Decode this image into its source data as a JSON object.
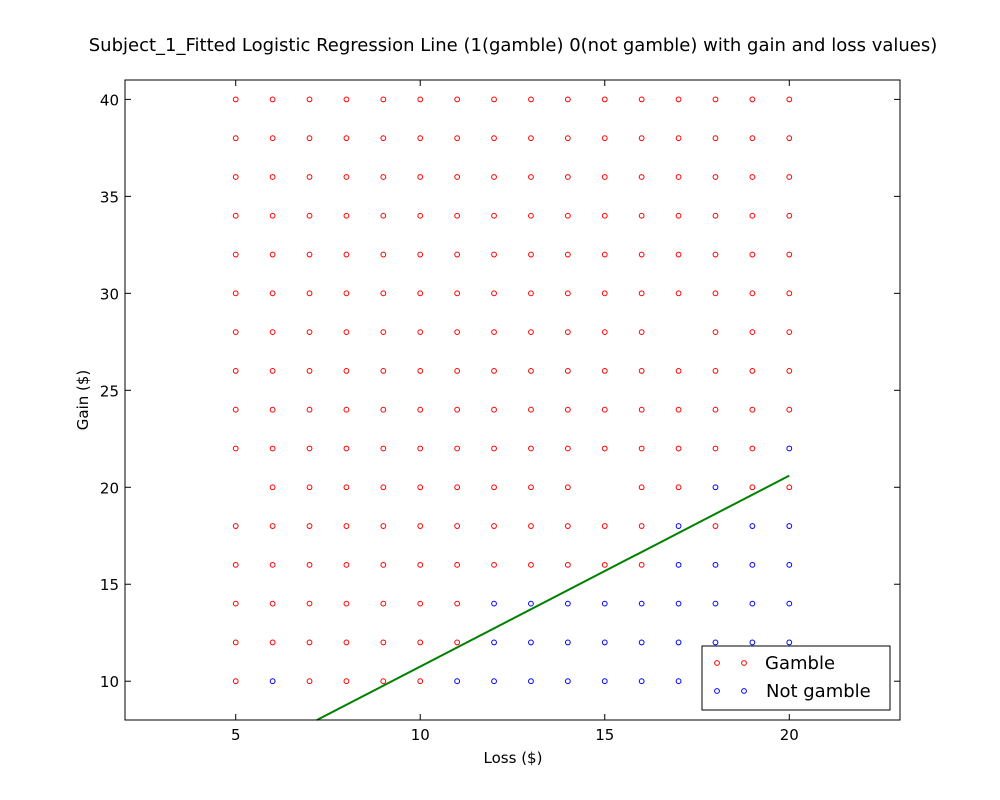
{
  "chart_data": {
    "type": "scatter",
    "title": "Subject_1_Fitted Logistic Regression Line (1(gamble) 0(not gamble) with gain and loss values)",
    "xlabel": "Loss ($)",
    "ylabel": "Gain ($)",
    "xlim": [
      2,
      23
    ],
    "ylim": [
      8,
      41
    ],
    "xticks": [
      5,
      10,
      15,
      20
    ],
    "yticks": [
      10,
      15,
      20,
      25,
      30,
      35,
      40
    ],
    "xtick_labels": [
      "5",
      "10",
      "15",
      "20"
    ],
    "ytick_labels": [
      "10",
      "15",
      "20",
      "25",
      "30",
      "35",
      "40"
    ],
    "grid": false,
    "legend_position": "lower-right",
    "series": [
      {
        "name": "Gamble",
        "color": "#ff0000",
        "marker": "open-circle",
        "points": [
          [
            5,
            10
          ],
          [
            7,
            10
          ],
          [
            8,
            10
          ],
          [
            9,
            10
          ],
          [
            10,
            10
          ],
          [
            5,
            12
          ],
          [
            6,
            12
          ],
          [
            7,
            12
          ],
          [
            8,
            12
          ],
          [
            9,
            12
          ],
          [
            10,
            12
          ],
          [
            11,
            12
          ],
          [
            5,
            14
          ],
          [
            6,
            14
          ],
          [
            7,
            14
          ],
          [
            8,
            14
          ],
          [
            9,
            14
          ],
          [
            10,
            14
          ],
          [
            11,
            14
          ],
          [
            5,
            16
          ],
          [
            6,
            16
          ],
          [
            7,
            16
          ],
          [
            8,
            16
          ],
          [
            9,
            16
          ],
          [
            10,
            16
          ],
          [
            11,
            16
          ],
          [
            12,
            16
          ],
          [
            13,
            16
          ],
          [
            14,
            16
          ],
          [
            15,
            16
          ],
          [
            16,
            16
          ],
          [
            5,
            18
          ],
          [
            6,
            18
          ],
          [
            7,
            18
          ],
          [
            8,
            18
          ],
          [
            9,
            18
          ],
          [
            10,
            18
          ],
          [
            11,
            18
          ],
          [
            12,
            18
          ],
          [
            13,
            18
          ],
          [
            14,
            18
          ],
          [
            15,
            18
          ],
          [
            16,
            18
          ],
          [
            18,
            18
          ],
          [
            6,
            20
          ],
          [
            7,
            20
          ],
          [
            8,
            20
          ],
          [
            9,
            20
          ],
          [
            10,
            20
          ],
          [
            11,
            20
          ],
          [
            12,
            20
          ],
          [
            13,
            20
          ],
          [
            14,
            20
          ],
          [
            16,
            20
          ],
          [
            17,
            20
          ],
          [
            19,
            20
          ],
          [
            20,
            20
          ],
          [
            5,
            22
          ],
          [
            6,
            22
          ],
          [
            7,
            22
          ],
          [
            8,
            22
          ],
          [
            9,
            22
          ],
          [
            10,
            22
          ],
          [
            11,
            22
          ],
          [
            12,
            22
          ],
          [
            13,
            22
          ],
          [
            14,
            22
          ],
          [
            15,
            22
          ],
          [
            16,
            22
          ],
          [
            17,
            22
          ],
          [
            18,
            22
          ],
          [
            19,
            22
          ],
          [
            5,
            24
          ],
          [
            6,
            24
          ],
          [
            7,
            24
          ],
          [
            8,
            24
          ],
          [
            9,
            24
          ],
          [
            10,
            24
          ],
          [
            11,
            24
          ],
          [
            12,
            24
          ],
          [
            13,
            24
          ],
          [
            14,
            24
          ],
          [
            15,
            24
          ],
          [
            16,
            24
          ],
          [
            17,
            24
          ],
          [
            18,
            24
          ],
          [
            19,
            24
          ],
          [
            20,
            24
          ],
          [
            5,
            26
          ],
          [
            6,
            26
          ],
          [
            7,
            26
          ],
          [
            8,
            26
          ],
          [
            9,
            26
          ],
          [
            10,
            26
          ],
          [
            11,
            26
          ],
          [
            12,
            26
          ],
          [
            13,
            26
          ],
          [
            14,
            26
          ],
          [
            15,
            26
          ],
          [
            16,
            26
          ],
          [
            17,
            26
          ],
          [
            18,
            26
          ],
          [
            19,
            26
          ],
          [
            20,
            26
          ],
          [
            5,
            28
          ],
          [
            6,
            28
          ],
          [
            7,
            28
          ],
          [
            8,
            28
          ],
          [
            9,
            28
          ],
          [
            10,
            28
          ],
          [
            11,
            28
          ],
          [
            12,
            28
          ],
          [
            13,
            28
          ],
          [
            14,
            28
          ],
          [
            15,
            28
          ],
          [
            16,
            28
          ],
          [
            18,
            28
          ],
          [
            19,
            28
          ],
          [
            20,
            28
          ],
          [
            5,
            30
          ],
          [
            6,
            30
          ],
          [
            7,
            30
          ],
          [
            8,
            30
          ],
          [
            9,
            30
          ],
          [
            10,
            30
          ],
          [
            11,
            30
          ],
          [
            12,
            30
          ],
          [
            13,
            30
          ],
          [
            14,
            30
          ],
          [
            15,
            30
          ],
          [
            16,
            30
          ],
          [
            17,
            30
          ],
          [
            18,
            30
          ],
          [
            19,
            30
          ],
          [
            20,
            30
          ],
          [
            5,
            32
          ],
          [
            6,
            32
          ],
          [
            7,
            32
          ],
          [
            8,
            32
          ],
          [
            9,
            32
          ],
          [
            10,
            32
          ],
          [
            11,
            32
          ],
          [
            12,
            32
          ],
          [
            13,
            32
          ],
          [
            14,
            32
          ],
          [
            15,
            32
          ],
          [
            16,
            32
          ],
          [
            17,
            32
          ],
          [
            18,
            32
          ],
          [
            19,
            32
          ],
          [
            20,
            32
          ],
          [
            5,
            34
          ],
          [
            6,
            34
          ],
          [
            7,
            34
          ],
          [
            8,
            34
          ],
          [
            9,
            34
          ],
          [
            10,
            34
          ],
          [
            11,
            34
          ],
          [
            12,
            34
          ],
          [
            13,
            34
          ],
          [
            14,
            34
          ],
          [
            15,
            34
          ],
          [
            16,
            34
          ],
          [
            17,
            34
          ],
          [
            18,
            34
          ],
          [
            19,
            34
          ],
          [
            20,
            34
          ],
          [
            5,
            36
          ],
          [
            6,
            36
          ],
          [
            7,
            36
          ],
          [
            8,
            36
          ],
          [
            9,
            36
          ],
          [
            10,
            36
          ],
          [
            11,
            36
          ],
          [
            12,
            36
          ],
          [
            13,
            36
          ],
          [
            14,
            36
          ],
          [
            15,
            36
          ],
          [
            16,
            36
          ],
          [
            17,
            36
          ],
          [
            18,
            36
          ],
          [
            19,
            36
          ],
          [
            20,
            36
          ],
          [
            5,
            38
          ],
          [
            6,
            38
          ],
          [
            7,
            38
          ],
          [
            8,
            38
          ],
          [
            9,
            38
          ],
          [
            10,
            38
          ],
          [
            11,
            38
          ],
          [
            12,
            38
          ],
          [
            13,
            38
          ],
          [
            14,
            38
          ],
          [
            15,
            38
          ],
          [
            16,
            38
          ],
          [
            17,
            38
          ],
          [
            18,
            38
          ],
          [
            19,
            38
          ],
          [
            20,
            38
          ],
          [
            5,
            40
          ],
          [
            6,
            40
          ],
          [
            7,
            40
          ],
          [
            8,
            40
          ],
          [
            9,
            40
          ],
          [
            10,
            40
          ],
          [
            11,
            40
          ],
          [
            12,
            40
          ],
          [
            13,
            40
          ],
          [
            14,
            40
          ],
          [
            15,
            40
          ],
          [
            16,
            40
          ],
          [
            17,
            40
          ],
          [
            18,
            40
          ],
          [
            19,
            40
          ],
          [
            20,
            40
          ]
        ]
      },
      {
        "name": "Not gamble",
        "color": "#0000ff",
        "marker": "open-circle",
        "points": [
          [
            6,
            10
          ],
          [
            11,
            10
          ],
          [
            12,
            10
          ],
          [
            13,
            10
          ],
          [
            14,
            10
          ],
          [
            15,
            10
          ],
          [
            16,
            10
          ],
          [
            17,
            10
          ],
          [
            12,
            12
          ],
          [
            13,
            12
          ],
          [
            14,
            12
          ],
          [
            15,
            12
          ],
          [
            16,
            12
          ],
          [
            17,
            12
          ],
          [
            18,
            12
          ],
          [
            19,
            12
          ],
          [
            20,
            12
          ],
          [
            12,
            14
          ],
          [
            13,
            14
          ],
          [
            14,
            14
          ],
          [
            15,
            14
          ],
          [
            16,
            14
          ],
          [
            17,
            14
          ],
          [
            18,
            14
          ],
          [
            19,
            14
          ],
          [
            20,
            14
          ],
          [
            17,
            16
          ],
          [
            18,
            16
          ],
          [
            19,
            16
          ],
          [
            20,
            16
          ],
          [
            17,
            18
          ],
          [
            19,
            18
          ],
          [
            20,
            18
          ],
          [
            18,
            20
          ],
          [
            20,
            22
          ]
        ]
      }
    ],
    "fit_line": {
      "color": "#008000",
      "x": [
        7.2,
        20
      ],
      "y": [
        8,
        20.6
      ]
    }
  }
}
